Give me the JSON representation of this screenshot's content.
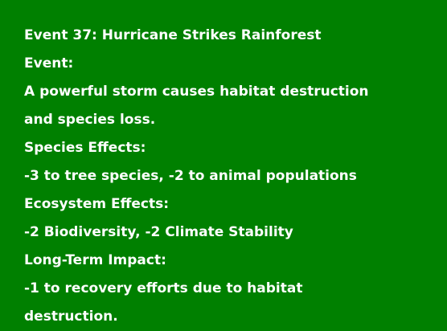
{
  "card": {
    "title": "Event 37: Hurricane Strikes Rainforest",
    "event_heading": "Event:",
    "event_text": "A powerful storm causes habitat destruction and species loss.",
    "species_heading": "Species Effects:",
    "species_text": "-3 to tree species, -2 to animal populations",
    "ecosystem_heading": "Ecosystem Effects:",
    "ecosystem_text": "-2 Biodiversity, -2 Climate Stability",
    "longterm_heading": "Long-Term Impact:",
    "longterm_text": "-1 to recovery efforts due to habitat destruction."
  },
  "colors": {
    "background": "#008000",
    "text": "#ffffff"
  }
}
